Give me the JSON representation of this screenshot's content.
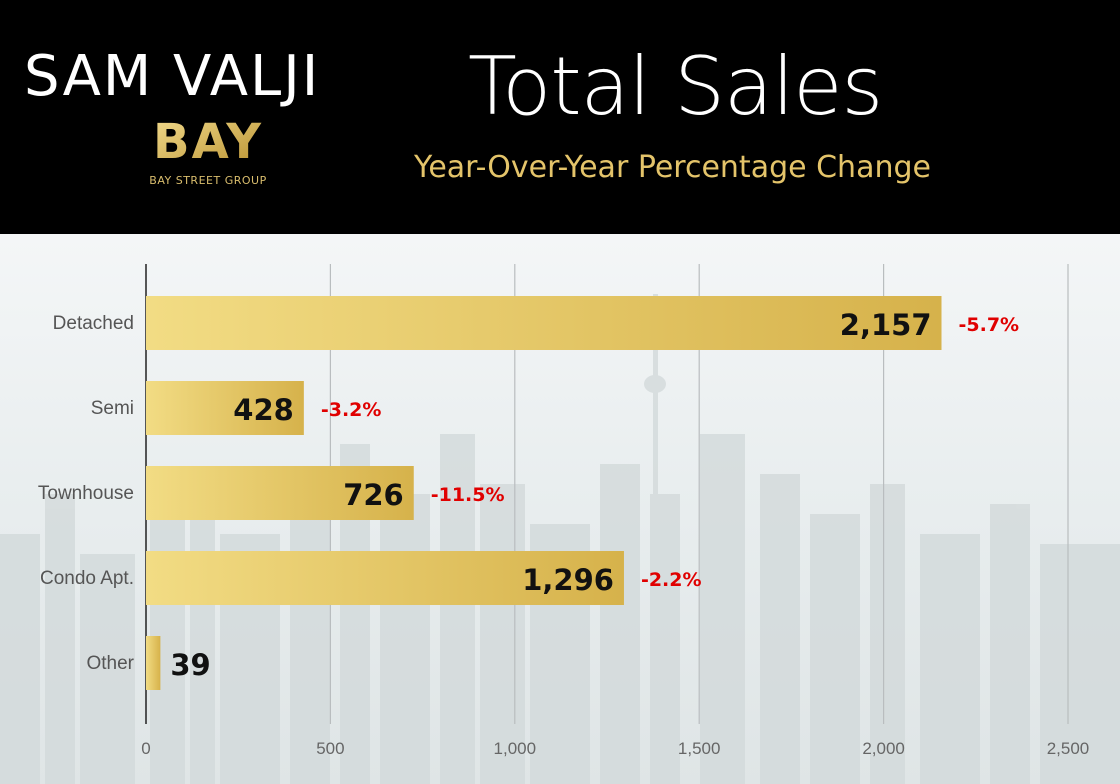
{
  "brand": {
    "name": "SAM VALJI",
    "logo_text": "BAY",
    "logo_caption": "BAY STREET GROUP"
  },
  "title": "Total Sales",
  "subtitle": "Year-Over-Year Percentage Change",
  "colors": {
    "header_bg": "#000000",
    "title": "#ffffff",
    "subtitle": "#e4c46a",
    "bar_light": "#f2dc84",
    "bar_dark": "#d6b24b",
    "change_negative": "#e00000",
    "value_label": "#111111"
  },
  "chart_data": {
    "type": "bar",
    "orientation": "horizontal",
    "categories": [
      "Detached",
      "Semi",
      "Townhouse",
      "Condo Apt.",
      "Other"
    ],
    "values": [
      2157,
      428,
      726,
      1296,
      39
    ],
    "value_labels": [
      "2,157",
      "428",
      "726",
      "1,296",
      "39"
    ],
    "changes": [
      "-5.7%",
      "-3.2%",
      "-11.5%",
      "-2.2%",
      ""
    ],
    "xlim": [
      0,
      2500
    ],
    "xticks": [
      0,
      500,
      1000,
      1500,
      2000,
      2500
    ],
    "xtick_labels": [
      "0",
      "500",
      "1,000",
      "1,500",
      "2,000",
      "2,500"
    ],
    "grid": true,
    "title": "Total Sales",
    "subtitle": "Year-Over-Year Percentage Change",
    "xlabel": "",
    "ylabel": ""
  }
}
